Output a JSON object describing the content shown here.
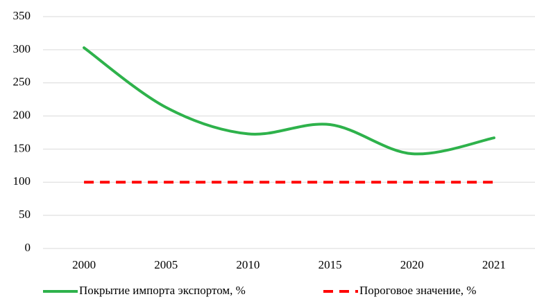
{
  "chart_data": {
    "type": "line",
    "categories": [
      "2000",
      "2005",
      "2010",
      "2015",
      "2020",
      "2021"
    ],
    "series": [
      {
        "name": "Покрытие импорта экспортом, %",
        "color": "#2eb24b",
        "dashed": false,
        "smooth": true,
        "values": [
          303,
          213,
          173,
          187,
          143,
          167
        ]
      },
      {
        "name": "Пороговое значение, %",
        "color": "#ff0000",
        "dashed": true,
        "smooth": false,
        "values": [
          100,
          100,
          100,
          100,
          100,
          100
        ]
      }
    ],
    "ylim": [
      0,
      350
    ],
    "yticks": [
      0,
      50,
      100,
      150,
      200,
      250,
      300,
      350
    ],
    "grid": true,
    "legend": "bottom"
  }
}
